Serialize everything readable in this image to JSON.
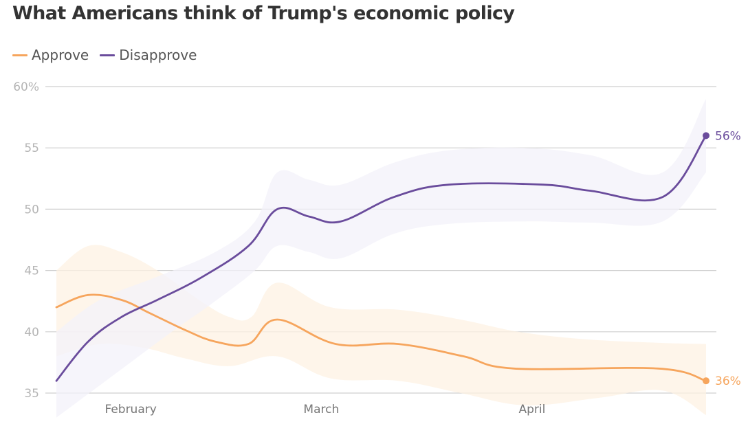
{
  "chart_data": {
    "type": "line",
    "title": "What Americans think of Trump's economic policy",
    "xlabel": "",
    "ylabel": "",
    "ylim": [
      35,
      60
    ],
    "y_ticks": [
      35,
      40,
      45,
      50,
      55,
      60
    ],
    "y_tick_labels": [
      "35",
      "40",
      "45",
      "50",
      "55",
      "60%"
    ],
    "x_unit": "days since first poll",
    "xlim": [
      0,
      90
    ],
    "x_ticks": [
      {
        "label": "February",
        "x": 10.3
      },
      {
        "label": "March",
        "x": 36.7
      },
      {
        "label": "April",
        "x": 65.9
      }
    ],
    "grid": true,
    "legend": "top-left",
    "series": [
      {
        "name": "Approve",
        "color": "#f6a55d",
        "band_color": "#fdf1e3",
        "points": [
          {
            "x": 0,
            "y": 42
          },
          {
            "x": 4.4,
            "y": 43
          },
          {
            "x": 9,
            "y": 42.6
          },
          {
            "x": 13,
            "y": 41.5
          },
          {
            "x": 18,
            "y": 40.1
          },
          {
            "x": 22,
            "y": 39.2
          },
          {
            "x": 26.6,
            "y": 39
          },
          {
            "x": 30.6,
            "y": 41
          },
          {
            "x": 38.7,
            "y": 39
          },
          {
            "x": 47.4,
            "y": 39
          },
          {
            "x": 56.4,
            "y": 38
          },
          {
            "x": 63.4,
            "y": 37
          },
          {
            "x": 83.4,
            "y": 37
          },
          {
            "x": 90,
            "y": 36
          }
        ],
        "band_upper": [
          {
            "x": 0,
            "y": 45
          },
          {
            "x": 4.4,
            "y": 47
          },
          {
            "x": 9,
            "y": 46.5
          },
          {
            "x": 14,
            "y": 45
          },
          {
            "x": 20,
            "y": 42.5
          },
          {
            "x": 24,
            "y": 41.2
          },
          {
            "x": 27,
            "y": 41.2
          },
          {
            "x": 30.6,
            "y": 44
          },
          {
            "x": 38,
            "y": 42
          },
          {
            "x": 47.4,
            "y": 41.8
          },
          {
            "x": 56,
            "y": 41
          },
          {
            "x": 64,
            "y": 40
          },
          {
            "x": 73,
            "y": 39.4
          },
          {
            "x": 83.4,
            "y": 39.1
          },
          {
            "x": 90,
            "y": 39
          }
        ],
        "band_lower": [
          {
            "x": 0,
            "y": 38
          },
          {
            "x": 6,
            "y": 39
          },
          {
            "x": 12,
            "y": 38.7
          },
          {
            "x": 18,
            "y": 37.8
          },
          {
            "x": 24,
            "y": 37.2
          },
          {
            "x": 30.6,
            "y": 38
          },
          {
            "x": 38,
            "y": 36.2
          },
          {
            "x": 47.4,
            "y": 36
          },
          {
            "x": 56,
            "y": 35
          },
          {
            "x": 65,
            "y": 34
          },
          {
            "x": 75,
            "y": 34.6
          },
          {
            "x": 84,
            "y": 35.2
          },
          {
            "x": 90,
            "y": 33.2
          }
        ],
        "end_label": "36%"
      },
      {
        "name": "Disapprove",
        "color": "#6a4c9c",
        "band_color": "#f3f2f9",
        "points": [
          {
            "x": 0,
            "y": 36
          },
          {
            "x": 4.4,
            "y": 39.2
          },
          {
            "x": 9,
            "y": 41.2
          },
          {
            "x": 14,
            "y": 42.6
          },
          {
            "x": 20,
            "y": 44.4
          },
          {
            "x": 26.6,
            "y": 47
          },
          {
            "x": 30.6,
            "y": 50
          },
          {
            "x": 35,
            "y": 49.4
          },
          {
            "x": 39.4,
            "y": 49
          },
          {
            "x": 46.8,
            "y": 51
          },
          {
            "x": 54.4,
            "y": 52
          },
          {
            "x": 67.4,
            "y": 52
          },
          {
            "x": 74,
            "y": 51.5
          },
          {
            "x": 84,
            "y": 51
          },
          {
            "x": 90,
            "y": 56
          }
        ],
        "band_upper": [
          {
            "x": 0,
            "y": 40
          },
          {
            "x": 6,
            "y": 42.6
          },
          {
            "x": 14,
            "y": 44.5
          },
          {
            "x": 22,
            "y": 46.5
          },
          {
            "x": 27.5,
            "y": 49
          },
          {
            "x": 30.6,
            "y": 53
          },
          {
            "x": 35,
            "y": 52.4
          },
          {
            "x": 39.4,
            "y": 52
          },
          {
            "x": 46.8,
            "y": 53.8
          },
          {
            "x": 54.4,
            "y": 54.8
          },
          {
            "x": 65,
            "y": 55
          },
          {
            "x": 74,
            "y": 54.4
          },
          {
            "x": 84,
            "y": 53
          },
          {
            "x": 90,
            "y": 59
          }
        ],
        "band_lower": [
          {
            "x": 0,
            "y": 33
          },
          {
            "x": 8,
            "y": 36.5
          },
          {
            "x": 16,
            "y": 40
          },
          {
            "x": 22,
            "y": 42.5
          },
          {
            "x": 27.5,
            "y": 45
          },
          {
            "x": 30.6,
            "y": 47
          },
          {
            "x": 35,
            "y": 46.5
          },
          {
            "x": 39.4,
            "y": 46
          },
          {
            "x": 46.8,
            "y": 48
          },
          {
            "x": 54.4,
            "y": 48.8
          },
          {
            "x": 65,
            "y": 49
          },
          {
            "x": 74,
            "y": 48.9
          },
          {
            "x": 84,
            "y": 49
          },
          {
            "x": 90,
            "y": 53
          }
        ],
        "end_label": "56%"
      }
    ]
  },
  "header": {
    "title": "What Americans think of Trump's economic policy"
  },
  "legend": {
    "items": [
      {
        "label": "Approve",
        "color": "#f6a55d"
      },
      {
        "label": "Disapprove",
        "color": "#6a4c9c"
      }
    ]
  }
}
